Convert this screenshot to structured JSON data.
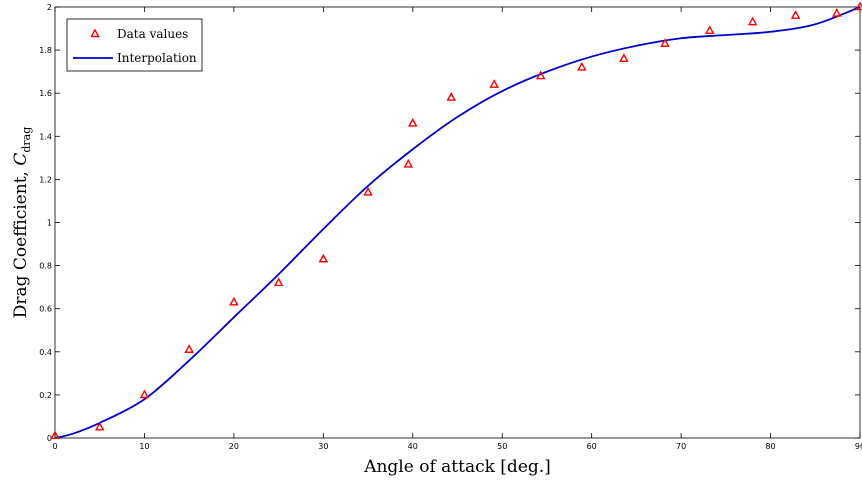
{
  "chart_data": {
    "type": "scatter",
    "title": "",
    "xlabel": "Angle of attack [deg.]",
    "ylabel_main": "Drag Coefficient, ",
    "ylabel_symbol": "C",
    "ylabel_subscript": "drag",
    "xlim": [
      0,
      90
    ],
    "ylim": [
      0,
      2
    ],
    "xticks": [
      0,
      10,
      20,
      30,
      40,
      50,
      60,
      70,
      80,
      90
    ],
    "yticks": [
      0,
      0.2,
      0.4,
      0.6,
      0.8,
      1,
      1.2,
      1.4,
      1.6,
      1.8,
      2
    ],
    "xtick_labels": [
      "0",
      "10",
      "20",
      "30",
      "40",
      "50",
      "60",
      "70",
      "80",
      "90"
    ],
    "ytick_labels": [
      "0",
      "0.2",
      "0.4",
      "0.6",
      "0.8",
      "1",
      "1.2",
      "1.4",
      "1.6",
      "1.8",
      "2"
    ],
    "grid": false,
    "legend_position": "top-left",
    "series": [
      {
        "name": "Data values",
        "kind": "markers",
        "marker": "triangle",
        "color": "#ff0000",
        "x": [
          0,
          5,
          10,
          15,
          20,
          25,
          30,
          35,
          39.5,
          40,
          44.3,
          49.1,
          54.3,
          58.9,
          63.6,
          68.2,
          73.2,
          78.0,
          82.8,
          87.4,
          90
        ],
        "y": [
          0.01,
          0.05,
          0.2,
          0.41,
          0.63,
          0.72,
          0.83,
          1.14,
          1.27,
          1.46,
          1.58,
          1.64,
          1.68,
          1.72,
          1.76,
          1.83,
          1.89,
          1.93,
          1.96,
          1.97,
          2.0
        ]
      },
      {
        "name": "Interpolation",
        "kind": "line",
        "color": "#0000cc",
        "x": [
          0,
          2,
          5,
          10,
          15,
          20,
          25,
          30,
          35,
          40,
          45,
          50,
          55,
          60,
          65,
          70,
          75,
          80,
          85,
          90
        ],
        "y": [
          0.0,
          0.02,
          0.07,
          0.18,
          0.36,
          0.56,
          0.76,
          0.97,
          1.17,
          1.34,
          1.49,
          1.61,
          1.7,
          1.77,
          1.82,
          1.855,
          1.87,
          1.885,
          1.92,
          2.0
        ]
      }
    ]
  }
}
